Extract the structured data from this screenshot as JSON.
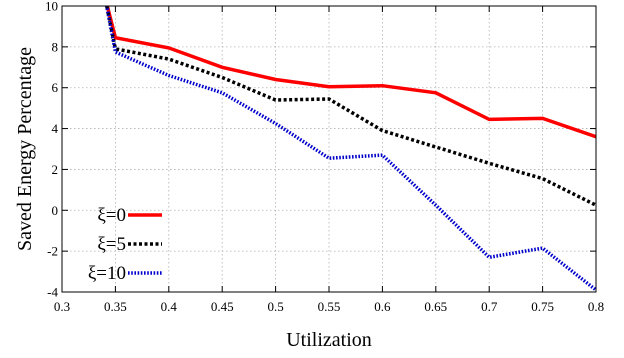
{
  "chart_data": {
    "type": "line",
    "xlabel": "Utilization",
    "ylabel": "Saved Energy Percentage",
    "xlim": [
      0.3,
      0.8
    ],
    "ylim": [
      -4,
      10
    ],
    "xticks": [
      "0.3",
      "0.35",
      "0.4",
      "0.45",
      "0.5",
      "0.55",
      "0.6",
      "0.65",
      "0.7",
      "0.75",
      "0.8"
    ],
    "yticks": [
      "-4",
      "-2",
      "0",
      "2",
      "4",
      "6",
      "8",
      "10"
    ],
    "grid": true,
    "legend_position": "bottom-left",
    "series": [
      {
        "name": "ξ=0",
        "color": "#ff0000",
        "style": "solid",
        "x": [
          0.34,
          0.35,
          0.4,
          0.45,
          0.5,
          0.55,
          0.6,
          0.65,
          0.7,
          0.75,
          0.8
        ],
        "y": [
          10.5,
          8.45,
          7.95,
          7.0,
          6.4,
          6.05,
          6.1,
          5.75,
          4.45,
          4.5,
          3.6
        ]
      },
      {
        "name": "ξ=5",
        "color": "#000000",
        "style": "dashed",
        "x": [
          0.34,
          0.35,
          0.4,
          0.45,
          0.5,
          0.55,
          0.6,
          0.65,
          0.7,
          0.75,
          0.8
        ],
        "y": [
          10.5,
          7.9,
          7.4,
          6.5,
          5.4,
          5.45,
          3.9,
          3.1,
          2.3,
          1.55,
          0.25
        ]
      },
      {
        "name": "ξ=10",
        "color": "#0000cc",
        "style": "dotted",
        "x": [
          0.34,
          0.35,
          0.4,
          0.45,
          0.5,
          0.55,
          0.6,
          0.65,
          0.7,
          0.75,
          0.8
        ],
        "y": [
          10.5,
          7.75,
          6.6,
          5.75,
          4.25,
          2.55,
          2.7,
          0.25,
          -2.3,
          -1.85,
          -3.9
        ]
      }
    ]
  }
}
